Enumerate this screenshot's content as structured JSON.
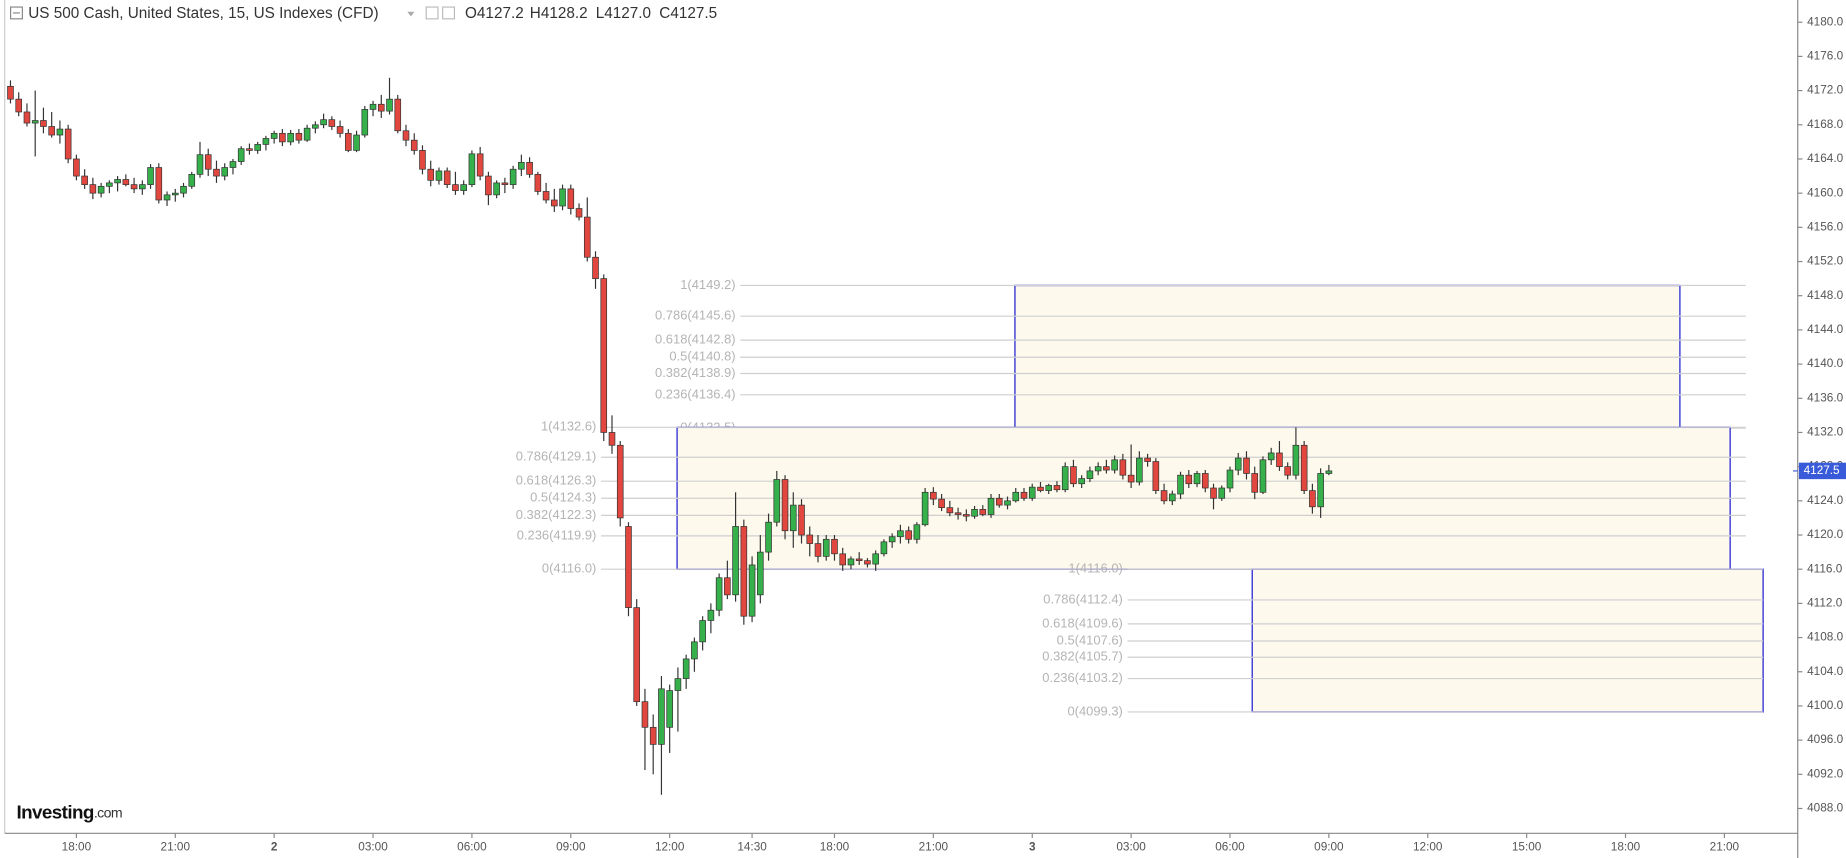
{
  "chart_data": {
    "type": "candlestick",
    "title": "US 500 Cash, United States, 15, US Indexes (CFD)",
    "legend": [
      "O4127.2",
      "H4128.2",
      "L4127.0",
      "C4127.5"
    ],
    "logo": [
      "Investing",
      ".com"
    ],
    "up_color": "#35b04a",
    "down_color": "#e2473f",
    "fib_color": "#3b3bd6",
    "fib_fill": "#fdf9ec",
    "last_color": "#3a5bd9",
    "last_price": 4127.5,
    "ylim": [
      4085.1,
      4182.6
    ],
    "yticks": [
      {
        "value": 4088,
        "label": "4088.0"
      },
      {
        "value": 4092,
        "label": "4092.0"
      },
      {
        "value": 4096,
        "label": "4096.0"
      },
      {
        "value": 4100,
        "label": "4100.0"
      },
      {
        "value": 4104,
        "label": "4104.0"
      },
      {
        "value": 4108,
        "label": "4108.0"
      },
      {
        "value": 4112,
        "label": "4112.0"
      },
      {
        "value": 4116,
        "label": "4116.0"
      },
      {
        "value": 4120,
        "label": "4120.0"
      },
      {
        "value": 4124,
        "label": "4124.0"
      },
      {
        "value": 4128,
        "label": "4128.0"
      },
      {
        "value": 4132,
        "label": "4132.0"
      },
      {
        "value": 4136,
        "label": "4136.0"
      },
      {
        "value": 4140,
        "label": "4140.0"
      },
      {
        "value": 4144,
        "label": "4144.0"
      },
      {
        "value": 4148,
        "label": "4148.0"
      },
      {
        "value": 4152,
        "label": "4152.0"
      },
      {
        "value": 4156,
        "label": "4156.0"
      },
      {
        "value": 4160,
        "label": "4160.0"
      },
      {
        "value": 4164,
        "label": "4164.0"
      },
      {
        "value": 4168,
        "label": "4168.0"
      },
      {
        "value": 4172,
        "label": "4172.0"
      },
      {
        "value": 4176,
        "label": "4176.0"
      },
      {
        "value": 4180,
        "label": "4180.0"
      }
    ],
    "xlim": [
      -0.7,
      216.9
    ],
    "xticks": [
      {
        "value": 8,
        "label": "18:00"
      },
      {
        "value": 20,
        "label": "21:00"
      },
      {
        "value": 32,
        "label": "2"
      },
      {
        "value": 44,
        "label": "03:00"
      },
      {
        "value": 56,
        "label": "06:00"
      },
      {
        "value": 68,
        "label": "09:00"
      },
      {
        "value": 80,
        "label": "12:00"
      },
      {
        "value": 90,
        "label": "14:30"
      },
      {
        "value": 100,
        "label": "18:00"
      },
      {
        "value": 112,
        "label": "21:00"
      },
      {
        "value": 124,
        "label": "3"
      },
      {
        "value": 136,
        "label": "03:00"
      },
      {
        "value": 148,
        "label": "06:00"
      },
      {
        "value": 160,
        "label": "09:00"
      },
      {
        "value": 172,
        "label": "12:00"
      },
      {
        "value": 184,
        "label": "15:00"
      },
      {
        "value": 196,
        "label": "18:00"
      },
      {
        "value": 208,
        "label": "21:00"
      }
    ],
    "open": [
      4172.5,
      4171,
      4169.5,
      4168.2,
      4168.5,
      4167.8,
      4166.8,
      4167.5,
      4164,
      4162,
      4161,
      4160,
      4160.8,
      4161.2,
      4161.6,
      4161,
      4160.5,
      4161,
      4163,
      4159.2,
      4159.8,
      4160,
      4160.8,
      4162.2,
      4164.5,
      4162.8,
      4162,
      4163,
      4163.7,
      4165.2,
      4165,
      4165.7,
      4166.4,
      4167,
      4166,
      4167,
      4166.2,
      4167.6,
      4168,
      4168.6,
      4167.8,
      4167,
      4165,
      4166.8,
      4169.8,
      4170.4,
      4169.6,
      4171,
      4167.3,
      4166.2,
      4165,
      4162.8,
      4161.5,
      4162.6,
      4161,
      4160.3,
      4161,
      4164.6,
      4162,
      4159.8,
      4161.2,
      4161,
      4162.8,
      4163.6,
      4162.2,
      4160.2,
      4159.2,
      4158.5,
      4160.5,
      4158.2,
      4157.2,
      4152.5,
      4150,
      4132,
      4130.5,
      4121,
      4111.5,
      4100.5,
      4097.5,
      4095.5,
      4097.5,
      4101.8,
      4103.2,
      4105.5,
      4107.5,
      4110,
      4111.2,
      4115,
      4113,
      4121,
      4110.5,
      4113,
      4118,
      4121.5,
      4126.5,
      4120.5,
      4123.5,
      4120,
      4119,
      4117.5,
      4119.5,
      4117.8,
      4116.5,
      4117.2,
      4117,
      4116.6,
      4117.8,
      4119.2,
      4119.8,
      4120.5,
      4119.5,
      4121.2,
      4125,
      4124.2,
      4123.2,
      4122.6,
      4122.4,
      4122.2,
      4123,
      4122.4,
      4124.3,
      4123.5,
      4124,
      4125,
      4124.3,
      4125.6,
      4125.2,
      4125.8,
      4125.3,
      4128,
      4126,
      4126.6,
      4127.5,
      4128,
      4127.6,
      4128.8,
      4127,
      4126.2,
      4129,
      4128.6,
      4125.2,
      4124,
      4124.8,
      4127,
      4126,
      4127.2,
      4125.5,
      4124.3,
      4125.5,
      4127.6,
      4129,
      4127.2,
      4125,
      4128.8,
      4129.6,
      4128,
      4127,
      4130.5,
      4125.2,
      4123.3,
      4127.2
    ],
    "high": [
      4173.2,
      4171.8,
      4170.5,
      4172,
      4170,
      4169.5,
      4168.5,
      4168,
      4164.5,
      4162.8,
      4161.8,
      4161.2,
      4161.5,
      4162,
      4162.2,
      4161.8,
      4161.5,
      4163.4,
      4163.5,
      4160.2,
      4160.5,
      4161.2,
      4162.5,
      4166,
      4165.2,
      4163.8,
      4163.5,
      4164,
      4165.5,
      4165.8,
      4166,
      4166.7,
      4167.3,
      4167.5,
      4167.4,
      4167.5,
      4168,
      4168.4,
      4169.3,
      4169,
      4168.5,
      4167.5,
      4167.3,
      4170.2,
      4170.8,
      4171.5,
      4173.5,
      4171.5,
      4168,
      4167,
      4165.6,
      4163.8,
      4163,
      4163,
      4162.5,
      4161.5,
      4165,
      4165.4,
      4162.5,
      4161.5,
      4161.8,
      4163.2,
      4164.5,
      4164.2,
      4162.5,
      4161.2,
      4160.5,
      4161,
      4161,
      4158.8,
      4159.5,
      4153.2,
      4150.5,
      4134,
      4131,
      4121.5,
      4112.5,
      4102,
      4099,
      4103.5,
      4102.5,
      4104.5,
      4106,
      4108,
      4110.5,
      4112,
      4115.5,
      4117,
      4125,
      4121.8,
      4117.5,
      4120,
      4122.5,
      4127.5,
      4127,
      4125,
      4124.2,
      4121,
      4120,
      4120,
      4120,
      4118.5,
      4117.5,
      4118,
      4117.3,
      4118.2,
      4119.5,
      4120.2,
      4121.2,
      4121,
      4121.5,
      4125.5,
      4125.6,
      4124.8,
      4124,
      4123.2,
      4123,
      4123.4,
      4123.5,
      4124.8,
      4124.8,
      4124.5,
      4125.5,
      4125.5,
      4126,
      4126.2,
      4126,
      4126.3,
      4128.5,
      4128.8,
      4127,
      4128,
      4128.5,
      4128.8,
      4129.3,
      4129.5,
      4130.6,
      4129.8,
      4129.5,
      4129,
      4126,
      4125.2,
      4127.4,
      4127.6,
      4127.5,
      4127.6,
      4126,
      4125.8,
      4128,
      4129.6,
      4129.8,
      4128,
      4129.2,
      4130.2,
      4131,
      4128.5,
      4132.6,
      4131,
      4126,
      4127.8,
      4128.2
    ],
    "low": [
      4170.5,
      4169,
      4167.8,
      4164.3,
      4167,
      4166.5,
      4165.8,
      4163.5,
      4161.5,
      4160.5,
      4159.3,
      4159.5,
      4160,
      4160.2,
      4160.8,
      4160,
      4159.8,
      4160.5,
      4158.8,
      4158.5,
      4159,
      4159.5,
      4160.5,
      4161.8,
      4162,
      4161.2,
      4161.5,
      4162.2,
      4163.3,
      4164.5,
      4164.6,
      4165,
      4165.8,
      4165.5,
      4165.6,
      4165.8,
      4166,
      4167,
      4167.6,
      4167.4,
      4166.5,
      4164.8,
      4164.8,
      4166.5,
      4169,
      4168.8,
      4169.2,
      4167,
      4165.5,
      4164.5,
      4162.2,
      4160.8,
      4161,
      4160.6,
      4159.8,
      4159.8,
      4160.7,
      4161.5,
      4158.6,
      4159.4,
      4160,
      4160.5,
      4162,
      4161.8,
      4159.8,
      4158.8,
      4157.8,
      4158,
      4157.5,
      4156.8,
      4152,
      4148.8,
      4131,
      4129.5,
      4121,
      4110.5,
      4100,
      4092.5,
      4092,
      4089.6,
      4094.5,
      4097,
      4102,
      4104,
      4106.5,
      4108.5,
      4110.5,
      4112.5,
      4112.2,
      4109.5,
      4109.8,
      4112,
      4117,
      4121,
      4119.5,
      4118.5,
      4119,
      4117.5,
      4116.8,
      4117,
      4117,
      4115.8,
      4116,
      4116.5,
      4116.2,
      4115.8,
      4117.5,
      4118.5,
      4119,
      4119,
      4119,
      4121,
      4123.5,
      4122.8,
      4122.2,
      4121.8,
      4121.6,
      4121.9,
      4122.2,
      4122,
      4123.2,
      4123,
      4123.8,
      4124,
      4124,
      4125,
      4124.8,
      4125,
      4125,
      4125.6,
      4125.5,
      4126.2,
      4127,
      4127.2,
      4127.2,
      4126.5,
      4125.5,
      4125.8,
      4128,
      4124.8,
      4123.6,
      4123.5,
      4124.2,
      4125.5,
      4125.6,
      4125,
      4123,
      4124,
      4125,
      4127,
      4126.5,
      4124.2,
      4124.8,
      4128.2,
      4127.5,
      4126.5,
      4126.5,
      4124.8,
      4122.5,
      4122,
      4127
    ],
    "close": [
      4171,
      4169.5,
      4168.2,
      4168.5,
      4167.8,
      4166.8,
      4167.5,
      4164,
      4162,
      4161,
      4160,
      4160.8,
      4161.2,
      4161.6,
      4161,
      4160.5,
      4161,
      4163,
      4159.2,
      4159.8,
      4160,
      4160.8,
      4162.2,
      4164.5,
      4162.8,
      4162,
      4163,
      4163.7,
      4165.2,
      4165,
      4165.7,
      4166.4,
      4167,
      4166,
      4167,
      4166.2,
      4167.6,
      4168,
      4168.6,
      4167.8,
      4167,
      4165,
      4166.8,
      4169.8,
      4170.4,
      4169.6,
      4171,
      4167.3,
      4166.2,
      4165,
      4162.8,
      4161.5,
      4162.6,
      4161,
      4160.3,
      4161,
      4164.6,
      4162,
      4159.8,
      4161.2,
      4161,
      4162.8,
      4163.6,
      4162.2,
      4160.2,
      4159.2,
      4158.5,
      4160.5,
      4158.2,
      4157.2,
      4152.5,
      4150,
      4132,
      4130.5,
      4122,
      4111.5,
      4100.5,
      4097.5,
      4095.5,
      4102,
      4101.8,
      4103.2,
      4105.5,
      4107.5,
      4110,
      4111.2,
      4115,
      4113,
      4121,
      4110.5,
      4116.5,
      4118,
      4121.5,
      4126.5,
      4120.5,
      4123.5,
      4120,
      4119,
      4117.5,
      4119.5,
      4117.8,
      4116.5,
      4117.2,
      4117,
      4116.6,
      4117.8,
      4119.2,
      4119.8,
      4120.5,
      4119.5,
      4121.2,
      4125,
      4124.2,
      4123.2,
      4122.6,
      4122.4,
      4122.2,
      4123,
      4122.4,
      4124.3,
      4123.5,
      4124,
      4125,
      4124.3,
      4125.6,
      4125.2,
      4125.8,
      4125.3,
      4128,
      4126,
      4126.6,
      4127.5,
      4128,
      4127.6,
      4128.8,
      4127,
      4126.2,
      4129,
      4128.6,
      4125.2,
      4124,
      4124.8,
      4127,
      4126,
      4127.2,
      4125.5,
      4124.3,
      4125.5,
      4127.6,
      4129,
      4127.2,
      4125,
      4128.8,
      4129.6,
      4128,
      4127,
      4130.5,
      4125.2,
      4123.3,
      4127.2,
      4127.5
    ],
    "fibs": [
      {
        "levels": [
          {
            "value": 4149.2,
            "label": "1(4149.2)"
          },
          {
            "value": 4145.6,
            "label": "0.786(4145.6)"
          },
          {
            "value": 4142.8,
            "label": "0.618(4142.8)"
          },
          {
            "value": 4140.8,
            "label": "0.5(4140.8)"
          },
          {
            "value": 4138.9,
            "label": "0.382(4138.9)"
          },
          {
            "value": 4136.4,
            "label": "0.236(4136.4)"
          },
          {
            "value": 4132.5,
            "label": "0(4132.5)"
          }
        ],
        "x_start": 88,
        "x_end": 210.6,
        "box": [
          121.9,
          202.6
        ]
      },
      {
        "levels": [
          {
            "value": 4132.6,
            "label": "1(4132.6)"
          },
          {
            "value": 4129.1,
            "label": "0.786(4129.1)"
          },
          {
            "value": 4126.3,
            "label": "0.618(4126.3)"
          },
          {
            "value": 4124.3,
            "label": "0.5(4124.3)"
          },
          {
            "value": 4122.3,
            "label": "0.382(4122.3)"
          },
          {
            "value": 4119.9,
            "label": "0.236(4119.9)"
          },
          {
            "value": 4116.0,
            "label": "0(4116.0)"
          }
        ],
        "x_start": 71.1,
        "x_end": 210.6,
        "box": [
          80.9,
          208.7
        ]
      },
      {
        "levels": [
          {
            "value": 4116.0,
            "label": "1(4116.0)"
          },
          {
            "value": 4112.4,
            "label": "0.786(4112.4)"
          },
          {
            "value": 4109.6,
            "label": "0.618(4109.6)"
          },
          {
            "value": 4107.6,
            "label": "0.5(4107.6)"
          },
          {
            "value": 4105.7,
            "label": "0.382(4105.7)"
          },
          {
            "value": 4103.2,
            "label": "0.236(4103.2)"
          },
          {
            "value": 4099.3,
            "label": "0(4099.3)"
          }
        ],
        "x_start": 135,
        "x_end": 212.7,
        "box": [
          150.7,
          212.7
        ]
      }
    ]
  }
}
